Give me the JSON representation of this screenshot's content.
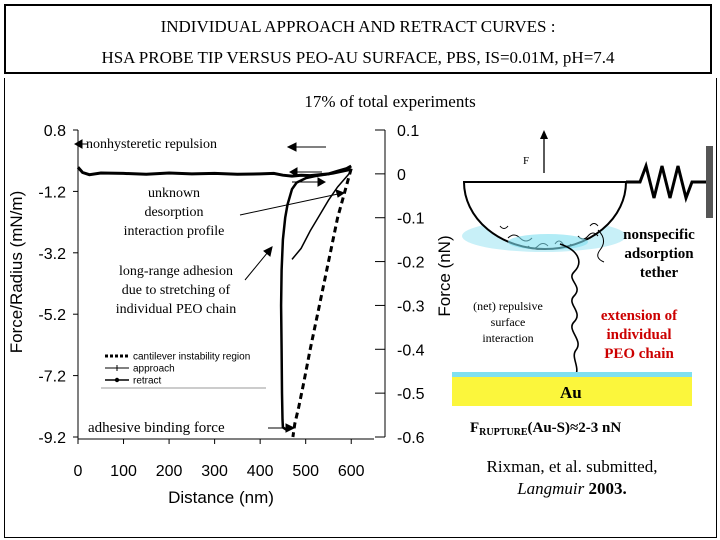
{
  "header": {
    "title_line1": "INDIVIDUAL APPROACH AND RETRACT CURVES :",
    "title_line2": "HSA PROBE TIP VERSUS PEO-AU SURFACE, PBS, IS=0.01M, pH=7.4"
  },
  "subtitle": "17% of total experiments",
  "chart_data": {
    "type": "line",
    "xlabel": "Distance (nm)",
    "ylabel_left": "Force/Radius (mN/m)",
    "ylabel_right": "Force (nN)",
    "xlim": [
      0,
      650
    ],
    "ylim_right": [
      -0.6,
      0.1
    ],
    "ylim_left": [
      -9.2,
      0.8
    ],
    "x_ticks": [
      "0",
      "100",
      "200",
      "300",
      "400",
      "500",
      "600"
    ],
    "y_left_ticks": [
      "0.8",
      "-1.2",
      "-3.2",
      "-5.2",
      "-7.2",
      "-9.2"
    ],
    "y_right_ticks": [
      "0.1",
      "0",
      "-0.1",
      "-0.2",
      "-0.3",
      "-0.4",
      "-0.5",
      "-0.6"
    ],
    "series": [
      {
        "name": "approach",
        "x": [
          0,
          10,
          25,
          50,
          100,
          150,
          200,
          250,
          300,
          350,
          400,
          430,
          450,
          470,
          490,
          510,
          530,
          550,
          570,
          590,
          600
        ],
        "y": [
          0.015,
          0.003,
          -0.002,
          0.002,
          0.001,
          -0.001,
          0.002,
          0.0,
          0.001,
          -0.001,
          0.0,
          0.001,
          -0.003,
          -0.005,
          -0.003,
          -0.004,
          -0.002,
          0.0,
          0.006,
          0.012,
          0.018
        ]
      },
      {
        "name": "retract",
        "x": [
          600,
          560,
          520,
          500,
          480,
          470,
          460,
          455,
          450,
          447,
          446,
          447,
          448,
          449,
          450,
          460
        ],
        "y": [
          0.01,
          0.001,
          -0.005,
          -0.01,
          -0.02,
          -0.035,
          -0.07,
          -0.1,
          -0.15,
          -0.22,
          -0.3,
          -0.4,
          -0.5,
          -0.56,
          -0.578,
          -0.585
        ]
      },
      {
        "name": "cantilever instability region",
        "x": [
          600,
          570,
          550,
          530,
          510,
          495,
          485,
          476,
          472
        ],
        "y": [
          0.012,
          -0.1,
          -0.2,
          -0.3,
          -0.4,
          -0.48,
          -0.53,
          -0.57,
          -0.6
        ]
      },
      {
        "name": "unknown desorption interaction profile",
        "x": [
          470,
          490,
          510,
          530,
          550,
          570,
          585,
          595
        ],
        "y": [
          -0.195,
          -0.17,
          -0.13,
          -0.095,
          -0.06,
          -0.03,
          -0.012,
          0.0
        ]
      }
    ],
    "legend": [
      "cantilever instability region",
      "approach",
      "retract"
    ],
    "legend_position": "lower-left"
  },
  "annotations": {
    "nonhysteretic": "nonhysteretic repulsion",
    "unknown_line1": "unknown",
    "unknown_line2": "desorption",
    "unknown_line3": "interaction profile",
    "longrange_line1": "long-range adhesion",
    "longrange_line2": "due to stretching of",
    "longrange_line3": "individual PEO chain",
    "adhesive": "adhesive binding force"
  },
  "diagram": {
    "force_label": "F",
    "nonspecific_line1": "nonspecific",
    "nonspecific_line2": "adsorption",
    "nonspecific_line3": "tether",
    "repulsive_line1": "(net) repulsive",
    "repulsive_line2": "surface",
    "repulsive_line3": "interaction",
    "extension_line1": "extension of",
    "extension_line2": "individual",
    "extension_line3": "PEO chain",
    "surface_label": "Au",
    "rupture_prefix": "F",
    "rupture_sub": "RUPTURE",
    "rupture_suffix": "(Au-S)≈2-3 nN",
    "citation_line1": "Rixman, et al. submitted,",
    "citation_journal": "Langmuir",
    "citation_year": " 2003."
  },
  "colors": {
    "red": "#cc0000",
    "sphere_fill": "#c8f0f8",
    "surface_fill": "#fbf63c",
    "surface_edge": "#7fe0f0",
    "spring_post": "#555555"
  }
}
